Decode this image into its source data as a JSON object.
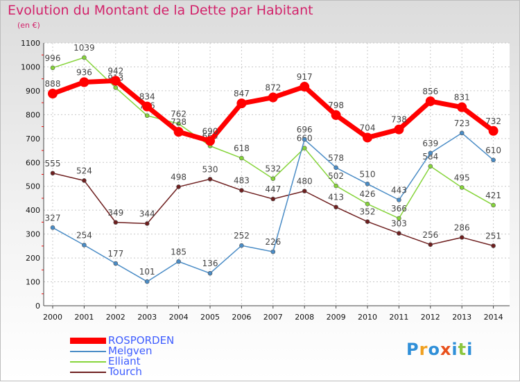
{
  "title": "Evolution du Montant de la Dette par Habitant",
  "subtitle": "(en €)",
  "logo_text": "Proxiti",
  "chart_data": {
    "type": "line",
    "title": "Evolution du Montant de la Dette par Habitant",
    "ylabel": "(en €)",
    "xlabel": "",
    "ylim": [
      0,
      1100
    ],
    "yticks": [
      0,
      100,
      200,
      300,
      400,
      500,
      600,
      700,
      800,
      900,
      1000,
      1100
    ],
    "grid": true,
    "legend_position": "bottom-left",
    "categories": [
      "2000",
      "2001",
      "2002",
      "2003",
      "2004",
      "2005",
      "2006",
      "2007",
      "2008",
      "2009",
      "2010",
      "2011",
      "2012",
      "2013",
      "2014"
    ],
    "series": [
      {
        "name": "Tourch",
        "color": "#6e1f1f",
        "values": [
          555,
          524,
          349,
          344,
          498,
          530,
          483,
          447,
          480,
          413,
          352,
          303,
          256,
          286,
          251
        ]
      },
      {
        "name": "Elliant",
        "color": "#86d43a",
        "values": [
          996,
          1039,
          913,
          796,
          762,
          669,
          618,
          532,
          660,
          502,
          426,
          366,
          584,
          495,
          421
        ]
      },
      {
        "name": "Melgven",
        "color": "#4a8cc6",
        "values": [
          327,
          254,
          177,
          101,
          185,
          136,
          252,
          226,
          696,
          578,
          510,
          443,
          639,
          723,
          610
        ]
      },
      {
        "name": "ROSPORDEN",
        "color": "#ff0000",
        "values": [
          888,
          936,
          942,
          834,
          728,
          690,
          847,
          872,
          917,
          798,
          704,
          738,
          856,
          831,
          732
        ]
      }
    ]
  }
}
